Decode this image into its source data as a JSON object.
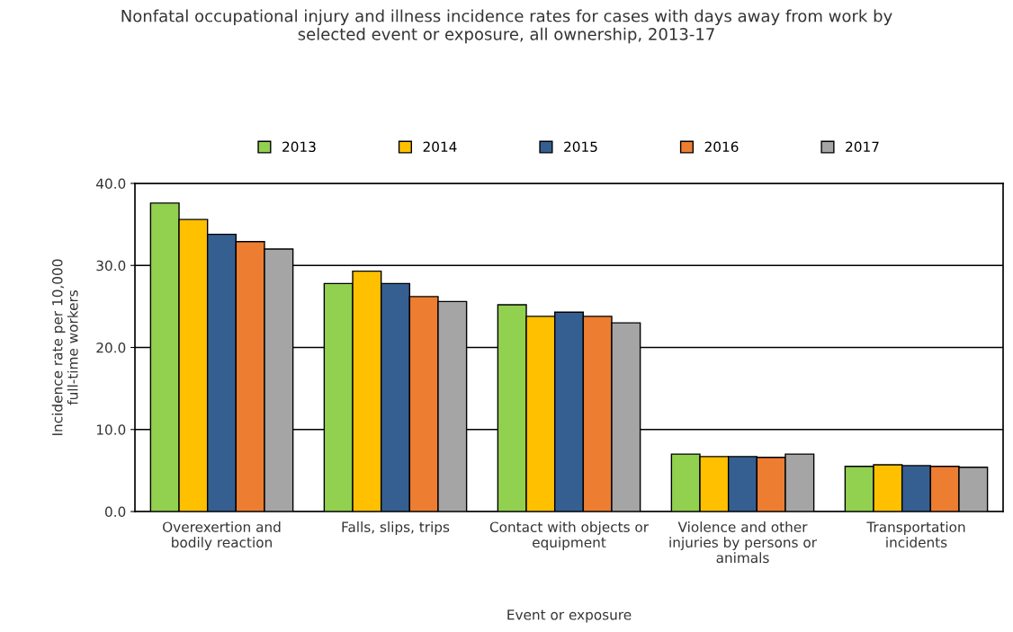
{
  "chart_data": {
    "type": "bar",
    "title": "Nonfatal occupational injury and illness incidence rates for cases with days away from work by\nselected event or exposure, all ownership, 2013-17",
    "xlabel": "Event or exposure",
    "ylabel": "Incidence rate per 10,000\nfull-time workers",
    "categories": [
      "Overexertion and\nbodily reaction",
      "Falls, slips, trips",
      "Contact with objects or\nequipment",
      "Violence and other\ninjuries by persons or\nanimals",
      "Transportation\nincidents"
    ],
    "series": [
      {
        "name": "2013",
        "color": "#92d050",
        "values": [
          37.6,
          27.8,
          25.2,
          7.0,
          5.5
        ]
      },
      {
        "name": "2014",
        "color": "#ffc000",
        "values": [
          35.6,
          29.3,
          23.8,
          6.7,
          5.7
        ]
      },
      {
        "name": "2015",
        "color": "#355f91",
        "values": [
          33.8,
          27.8,
          24.3,
          6.7,
          5.6
        ]
      },
      {
        "name": "2016",
        "color": "#ed7d31",
        "values": [
          32.9,
          26.2,
          23.8,
          6.6,
          5.5
        ]
      },
      {
        "name": "2017",
        "color": "#a5a5a5",
        "values": [
          32.0,
          25.6,
          23.0,
          7.0,
          5.4
        ]
      }
    ],
    "ylim": [
      0,
      40
    ],
    "yticks": [
      {
        "value": 0,
        "label": "0.0"
      },
      {
        "value": 10,
        "label": "10.0"
      },
      {
        "value": 20,
        "label": "20.0"
      },
      {
        "value": 30,
        "label": "30.0"
      },
      {
        "value": 40,
        "label": "40.0"
      }
    ],
    "grid": "y",
    "legend": "top"
  }
}
